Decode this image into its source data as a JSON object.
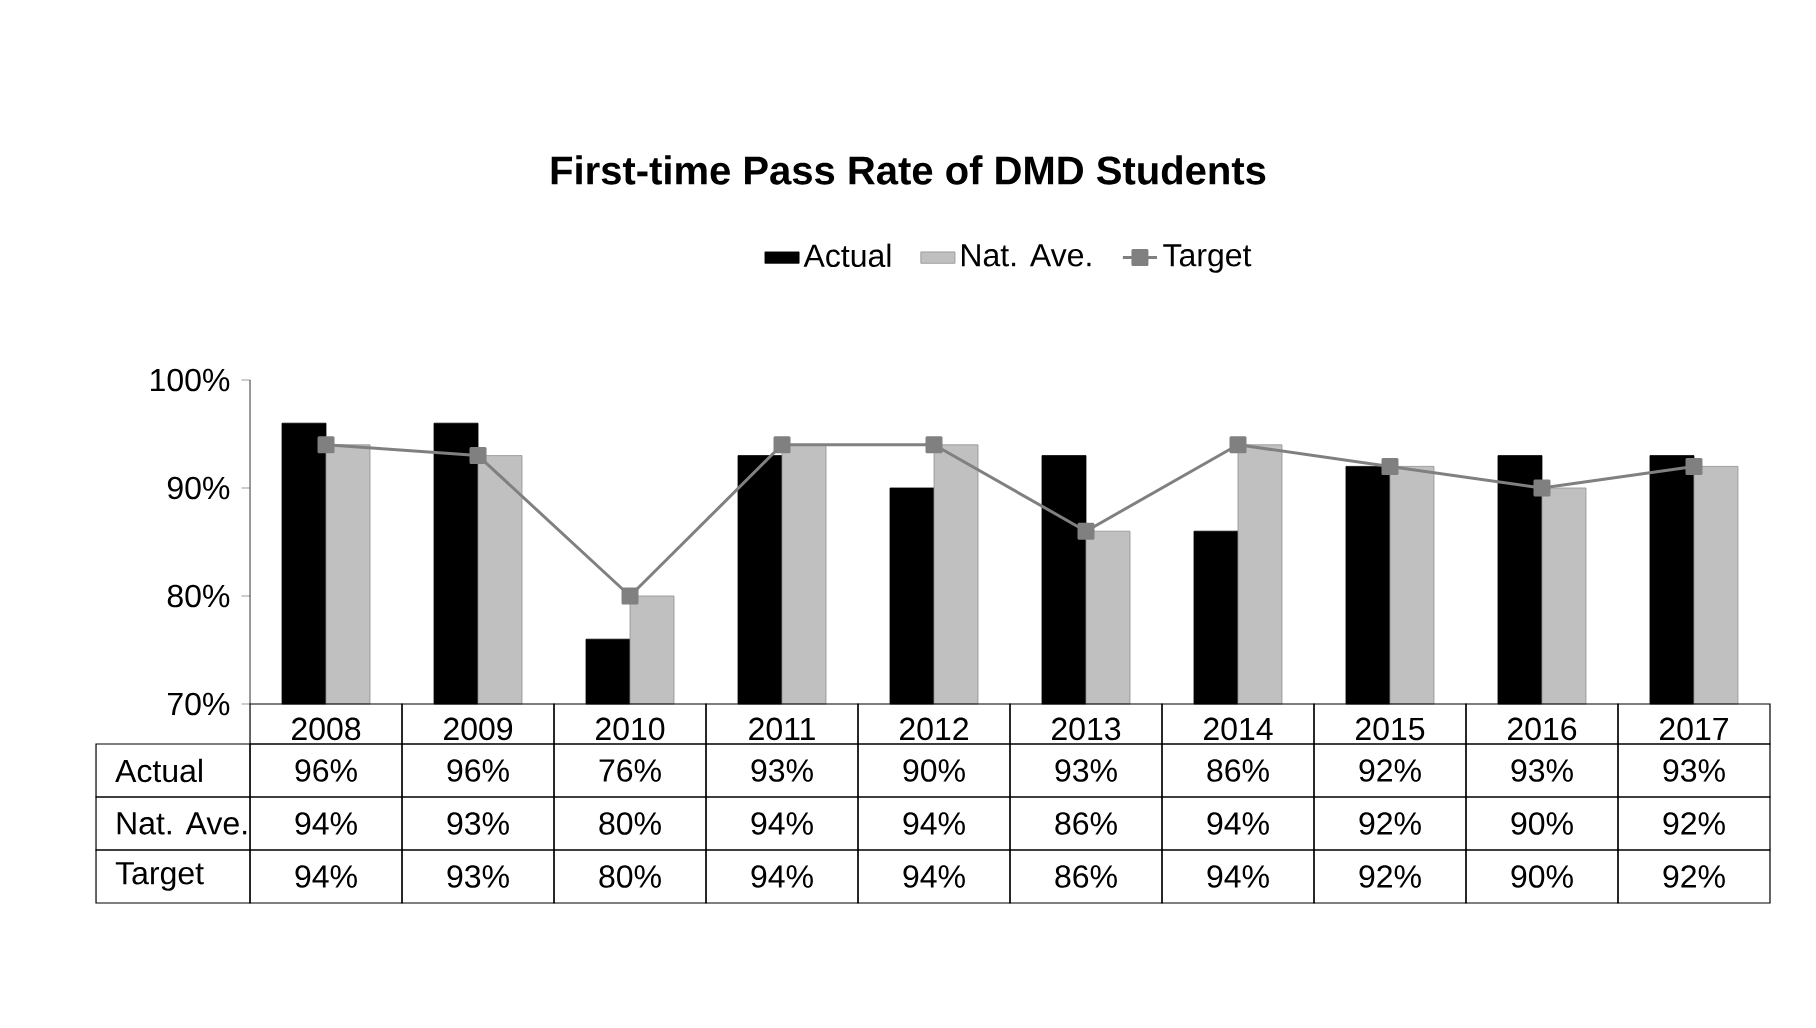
{
  "chart_data": {
    "type": "bar",
    "title": "First-time Pass Rate of DMD Students",
    "categories": [
      "2008",
      "2009",
      "2010",
      "2011",
      "2012",
      "2013",
      "2014",
      "2015",
      "2016",
      "2017"
    ],
    "series": [
      {
        "name": "Actual",
        "color": "#000000",
        "values": [
          96,
          96,
          76,
          93,
          90,
          93,
          86,
          92,
          93,
          93
        ],
        "value_labels": [
          "96%",
          "96%",
          "76%",
          "93%",
          "90%",
          "93%",
          "86%",
          "92%",
          "93%",
          "93%"
        ]
      },
      {
        "name": "Nat. Ave.",
        "color": "#c0c0c0",
        "values": [
          94,
          93,
          80,
          94,
          94,
          86,
          94,
          92,
          90,
          92
        ],
        "value_labels": [
          "94%",
          "93%",
          "80%",
          "94%",
          "94%",
          "86%",
          "94%",
          "92%",
          "90%",
          "92%"
        ]
      },
      {
        "name": "Target",
        "type": "line",
        "color": "#808080",
        "values": [
          94,
          93,
          80,
          94,
          94,
          86,
          94,
          92,
          90,
          92
        ],
        "value_labels": [
          "94%",
          "93%",
          "80%",
          "94%",
          "94%",
          "86%",
          "94%",
          "92%",
          "90%",
          "92%"
        ]
      }
    ],
    "ylim": [
      70,
      100
    ],
    "yticks": [
      {
        "value": 70,
        "label": "70%"
      },
      {
        "value": 80,
        "label": "80%"
      },
      {
        "value": 90,
        "label": "90%"
      },
      {
        "value": 100,
        "label": "100%"
      }
    ],
    "legend": "top",
    "marker": "square",
    "grid": false
  }
}
